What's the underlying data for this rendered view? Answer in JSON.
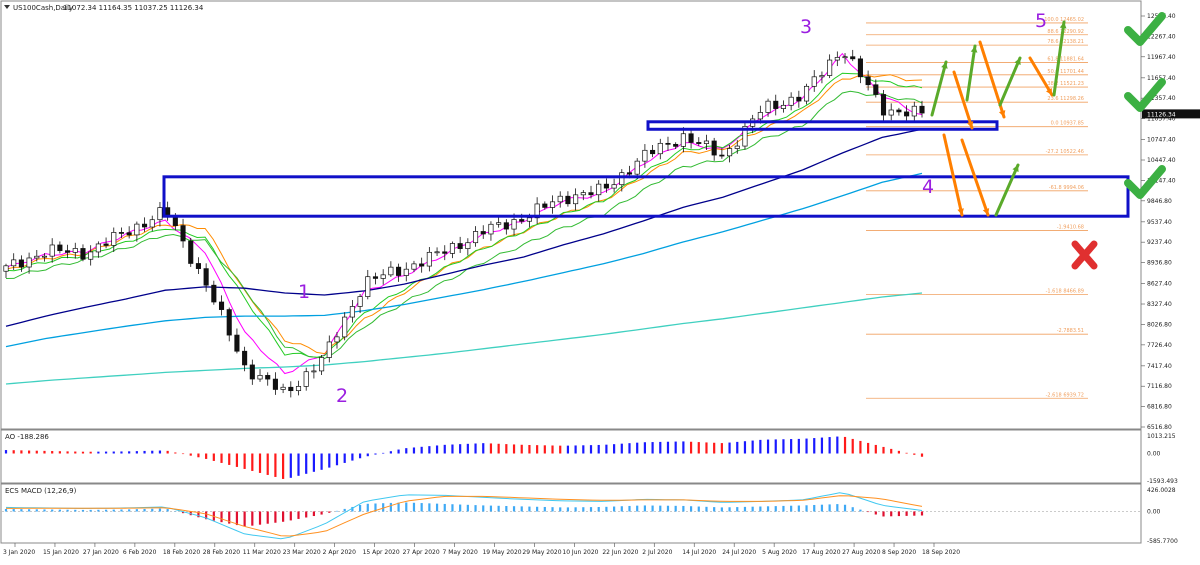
{
  "header": {
    "symbol_line": "US100Cash,Daily",
    "ohlc": "11072.34 11164.35 11037.25 11126.34"
  },
  "main_axis": {
    "ticks": [
      "12567.40",
      "12267.40",
      "11967.40",
      "11657.40",
      "11357.40",
      "11057.40",
      "10747.40",
      "10447.40",
      "10147.40",
      "9846.80",
      "9537.40",
      "9237.40",
      "8936.80",
      "8627.40",
      "8327.40",
      "8026.80",
      "7726.40",
      "7417.40",
      "7116.80",
      "6816.80",
      "6516.80"
    ],
    "current_price": "11126.34"
  },
  "fib_levels": [
    {
      "label": "100.0 12465.02",
      "value": 12465.02
    },
    {
      "label": "88.6 12290.92",
      "value": 12290.92
    },
    {
      "label": "78.6 12138.21",
      "value": 12138.21
    },
    {
      "label": "61.8 11881.64",
      "value": 11881.64
    },
    {
      "label": "50.0 11701.44",
      "value": 11701.44
    },
    {
      "label": "38.2 11521.23",
      "value": 11521.23
    },
    {
      "label": "23.6 11298.26",
      "value": 11298.26
    },
    {
      "label": "0.0 10937.85",
      "value": 10937.85
    },
    {
      "label": "-27.2 10522.46",
      "value": 10522.46
    },
    {
      "label": "-61.8 9994.06",
      "value": 9994.06
    },
    {
      "label": "-1.9410.68",
      "value": 9410.68
    },
    {
      "label": "-1.618 8466.89",
      "value": 8466.89
    },
    {
      "label": "-2.7883.51",
      "value": 7883.51
    },
    {
      "label": "-2.618 6939.72",
      "value": 6939.72
    }
  ],
  "waves": {
    "w1": "1",
    "w2": "2",
    "w3": "3",
    "w4": "4",
    "w5": "5"
  },
  "ao": {
    "title": "AO -188.286",
    "ticks": [
      "1013.215",
      "0.00",
      "-1593.493"
    ]
  },
  "macd": {
    "title": "ECS MACD (12,26,9)",
    "ticks": [
      "426.0028",
      "0.00",
      "-585.7700"
    ]
  },
  "x_axis": {
    "labels": [
      "3 Jan 2020",
      "15 Jan 2020",
      "27 Jan 2020",
      "6 Feb 2020",
      "18 Feb 2020",
      "28 Feb 2020",
      "11 Mar 2020",
      "23 Mar 2020",
      "2 Apr 2020",
      "15 Apr 2020",
      "27 Apr 2020",
      "7 May 2020",
      "19 May 2020",
      "29 May 2020",
      "10 Jun 2020",
      "22 Jun 2020",
      "2 Jul 2020",
      "14 Jul 2020",
      "24 Jul 2020",
      "5 Aug 2020",
      "17 Aug 2020",
      "27 Aug 2020",
      "8 Sep 2020",
      "18 Sep 2020"
    ]
  },
  "chart_data": {
    "type": "candlestick",
    "title": "US100Cash,Daily",
    "xlabel": "",
    "ylabel": "",
    "ylim": [
      6516.8,
      12567.4
    ],
    "dates": [
      "3 Jan 2020",
      "15 Jan 2020",
      "27 Jan 2020",
      "6 Feb 2020",
      "18 Feb 2020",
      "28 Feb 2020",
      "11 Mar 2020",
      "23 Mar 2020",
      "2 Apr 2020",
      "15 Apr 2020",
      "27 Apr 2020",
      "7 May 2020",
      "19 May 2020",
      "29 May 2020",
      "10 Jun 2020",
      "22 Jun 2020",
      "2 Jul 2020",
      "14 Jul 2020",
      "24 Jul 2020",
      "5 Aug 2020",
      "17 Aug 2020",
      "27 Aug 2020",
      "8 Sep 2020",
      "18 Sep 2020"
    ],
    "close": [
      8850,
      9110,
      9080,
      9380,
      9700,
      8650,
      7400,
      7000,
      7550,
      8650,
      8850,
      9100,
      9400,
      9600,
      9900,
      10000,
      10500,
      10800,
      10500,
      11200,
      11400,
      12100,
      11200,
      11126.34
    ],
    "series": [
      {
        "name": "MA fast",
        "color": "#ff00ff",
        "values": [
          8860,
          9050,
          9100,
          9350,
          9550,
          9100,
          7900,
          7300,
          7600,
          8500,
          8750,
          9050,
          9350,
          9550,
          9850,
          9950,
          10400,
          10700,
          10600,
          11100,
          11350,
          12000,
          11400,
          11100
        ]
      },
      {
        "name": "MA 21",
        "color": "#ff8c00",
        "values": [
          8820,
          9000,
          9070,
          9300,
          9500,
          9450,
          8500,
          7800,
          7600,
          8100,
          8500,
          8850,
          9150,
          9400,
          9650,
          9850,
          10200,
          10550,
          10600,
          10900,
          11150,
          11650,
          11700,
          11600
        ]
      },
      {
        "name": "Green MA upper",
        "color": "#22cc22",
        "values": [
          8800,
          8950,
          9050,
          9230,
          9450,
          9300,
          8400,
          7600,
          7550,
          8200,
          8550,
          8850,
          9150,
          9400,
          9650,
          9850,
          10250,
          10600,
          10650,
          10950,
          11200,
          11750,
          11600,
          11500
        ]
      },
      {
        "name": "Green MA lower",
        "color": "#33bb33",
        "values": [
          8700,
          8850,
          8980,
          9150,
          9350,
          9250,
          8550,
          7700,
          7500,
          8000,
          8350,
          8650,
          8950,
          9200,
          9450,
          9650,
          10000,
          10350,
          10450,
          10750,
          10950,
          11450,
          11400,
          11300
        ]
      },
      {
        "name": "MA 144",
        "color": "#00008b",
        "values": [
          8000,
          8150,
          8280,
          8400,
          8530,
          8580,
          8560,
          8490,
          8460,
          8520,
          8620,
          8760,
          8900,
          9020,
          9200,
          9360,
          9550,
          9750,
          9900,
          10100,
          10300,
          10550,
          10780,
          10900
        ]
      },
      {
        "name": "MA 233",
        "color": "#00a0e0",
        "values": [
          7700,
          7820,
          7910,
          8000,
          8080,
          8130,
          8150,
          8150,
          8160,
          8230,
          8320,
          8430,
          8540,
          8660,
          8790,
          8920,
          9070,
          9240,
          9390,
          9560,
          9730,
          9920,
          10120,
          10250
        ]
      },
      {
        "name": "MA 377",
        "color": "#40d0c0",
        "values": [
          7150,
          7200,
          7240,
          7280,
          7320,
          7350,
          7380,
          7400,
          7430,
          7480,
          7540,
          7600,
          7670,
          7740,
          7810,
          7880,
          7960,
          8040,
          8110,
          8190,
          8270,
          8350,
          8430,
          8490
        ]
      }
    ],
    "ao_values": [
      200,
      150,
      100,
      120,
      180,
      -300,
      -900,
      -1500,
      -900,
      -200,
      300,
      500,
      600,
      500,
      450,
      500,
      650,
      700,
      600,
      800,
      850,
      1000,
      400,
      -188.286
    ],
    "macd_hist": [
      50,
      40,
      30,
      40,
      60,
      -150,
      -300,
      -200,
      -50,
      150,
      180,
      150,
      120,
      100,
      80,
      90,
      120,
      110,
      80,
      100,
      120,
      150,
      -100,
      -80
    ],
    "macd_line": [
      80,
      70,
      60,
      70,
      90,
      -120,
      -450,
      -550,
      -250,
      200,
      330,
      320,
      280,
      240,
      210,
      200,
      240,
      230,
      180,
      200,
      230,
      380,
      120,
      20
    ],
    "signal_line": [
      60,
      65,
      62,
      65,
      75,
      -40,
      -300,
      -500,
      -400,
      -50,
      200,
      300,
      300,
      270,
      240,
      220,
      230,
      230,
      200,
      200,
      220,
      320,
      250,
      100
    ]
  },
  "annotations": {
    "boxes": [
      {
        "name": "upper-consolidation-box",
        "y_top": 11010,
        "y_bottom": 10900
      },
      {
        "name": "lower-support-box",
        "y_top": 10200,
        "y_bottom": 9620
      }
    ],
    "outcomes": [
      {
        "name": "check-1",
        "symbol": "✔",
        "color": "#3cb043"
      },
      {
        "name": "check-2",
        "symbol": "✔",
        "color": "#3cb043"
      },
      {
        "name": "check-3",
        "symbol": "✔",
        "color": "#3cb043"
      },
      {
        "name": "cross-1",
        "symbol": "✘",
        "color": "#e03030"
      }
    ]
  },
  "colors": {
    "ao_up": "#1a1aff",
    "ao_down": "#ff1a1a",
    "macd_up": "#3fa9f5",
    "macd_down": "#e0102f",
    "projection_up": "#5aaa2a",
    "projection_down": "#ff7f00",
    "box": "#1010c8",
    "wave_label": "#9a1ee0",
    "fib": "#f0a060"
  }
}
